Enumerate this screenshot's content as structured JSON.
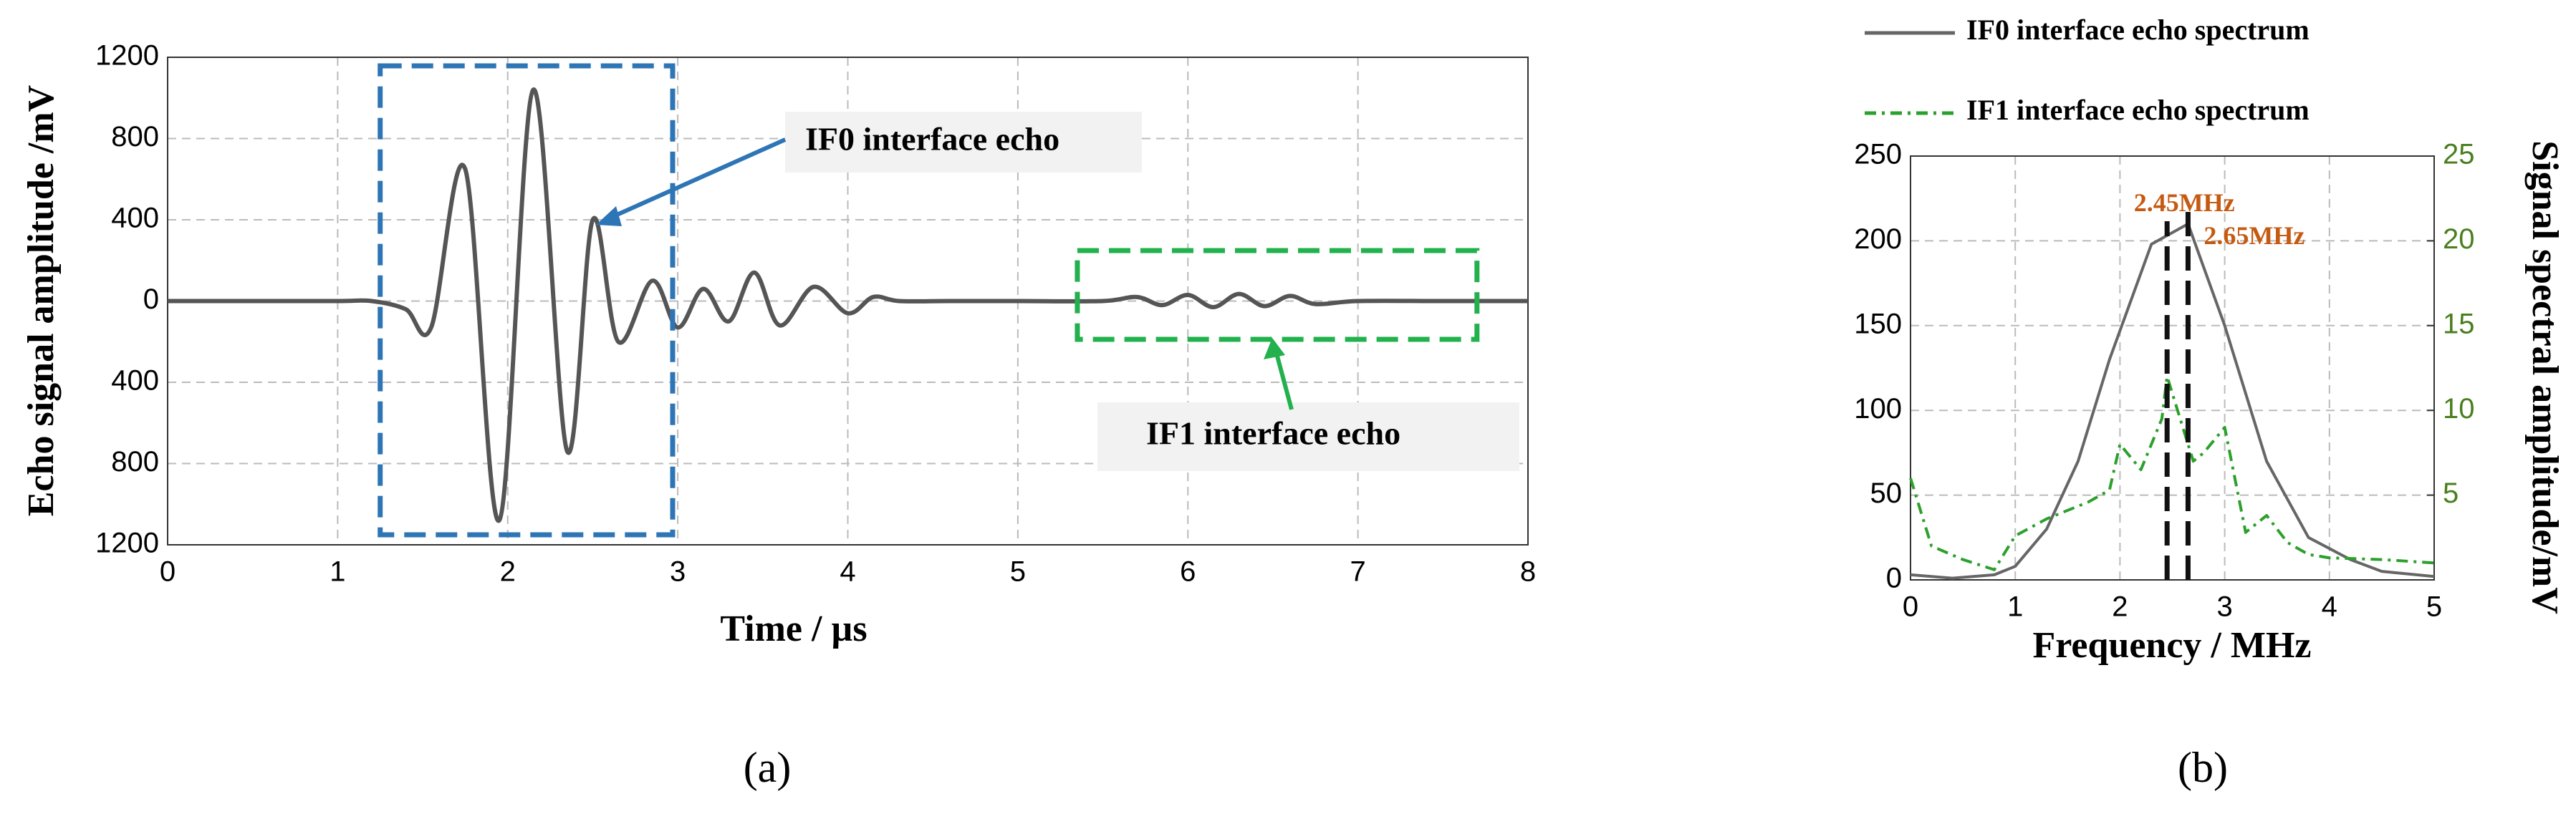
{
  "chart_data": [
    {
      "type": "line",
      "panel": "(a)",
      "x_label": "Time / µs",
      "y_label": "Echo signal amplitude /mV",
      "x": [
        0,
        0.5,
        1.0,
        1.2,
        1.4,
        1.55,
        1.75,
        1.95,
        2.15,
        2.35,
        2.5,
        2.65,
        2.85,
        3.0,
        3.15,
        3.3,
        3.45,
        3.6,
        3.8,
        4.0,
        4.15,
        4.3,
        4.6,
        5.0,
        5.5,
        5.7,
        5.85,
        6.0,
        6.15,
        6.3,
        6.45,
        6.6,
        6.75,
        7.0,
        7.5,
        8.0
      ],
      "series": [
        {
          "color": "#555555",
          "values": [
            0,
            0,
            0,
            0,
            -40,
            -130,
            650,
            -1080,
            1040,
            -740,
            400,
            -200,
            100,
            -130,
            60,
            -100,
            140,
            -120,
            70,
            -60,
            20,
            0,
            0,
            0,
            0,
            20,
            -20,
            30,
            -30,
            35,
            -25,
            25,
            -15,
            0,
            0,
            0
          ]
        }
      ],
      "xlim": [
        0,
        8
      ],
      "xticks": [
        0,
        1,
        2,
        3,
        4,
        5,
        6,
        7,
        8
      ],
      "ylim": [
        -1200,
        1200
      ],
      "yticks": [
        {
          "value": -1200,
          "label": "1200"
        },
        {
          "value": -800,
          "label": "800"
        },
        {
          "value": -400,
          "label": "400"
        },
        0,
        400,
        800,
        1200
      ],
      "grid": true,
      "annotations": [
        {
          "text": "IF0 interface echo",
          "color": "#2e75b6"
        },
        {
          "text": "IF1 interface echo",
          "color": "#22b14c"
        }
      ]
    },
    {
      "type": "line",
      "panel": "(b)",
      "x_label": "Frequency / MHz",
      "y2_label": "Signal spectral amplitude/mV",
      "series": [
        {
          "name": "IF0 interface echo spectrum",
          "color": "#666666",
          "dash": "solid",
          "x": [
            0,
            0.4,
            0.8,
            1.0,
            1.3,
            1.6,
            1.9,
            2.3,
            2.65,
            3.0,
            3.4,
            3.8,
            4.2,
            4.5,
            5.0
          ],
          "values": [
            3,
            1,
            3,
            8,
            30,
            70,
            130,
            198,
            210,
            150,
            70,
            25,
            12,
            5,
            2
          ]
        },
        {
          "name": "IF1 interface echo spectrum",
          "color": "#2ca02c",
          "dash": "dashdot",
          "axis": "y2",
          "x": [
            0,
            0.2,
            0.5,
            0.8,
            1.0,
            1.3,
            1.7,
            1.9,
            2.0,
            2.2,
            2.4,
            2.45,
            2.55,
            2.7,
            2.8,
            3.0,
            3.2,
            3.4,
            3.6,
            3.8,
            4.0,
            4.5,
            5.0
          ],
          "values": [
            6,
            2,
            1.2,
            0.6,
            2.6,
            3.6,
            4.6,
            5.3,
            8,
            6.5,
            9.5,
            12,
            10,
            7,
            7.5,
            9,
            2.8,
            3.8,
            2.2,
            1.5,
            1.3,
            1.2,
            1
          ]
        }
      ],
      "xlim": [
        0,
        5
      ],
      "xticks": [
        0,
        1,
        2,
        3,
        4,
        5
      ],
      "ylim": [
        0,
        250
      ],
      "yticks": [
        0,
        50,
        100,
        150,
        200,
        250
      ],
      "y2lim": [
        0,
        25
      ],
      "y2ticks": [
        5,
        10,
        15,
        20,
        25
      ],
      "grid": true,
      "legend": "top",
      "markers": [
        {
          "x": 2.45,
          "label": "2.45MHz",
          "color": "#c55a11"
        },
        {
          "x": 2.65,
          "label": "2.65MHz",
          "color": "#c55a11"
        }
      ]
    }
  ]
}
